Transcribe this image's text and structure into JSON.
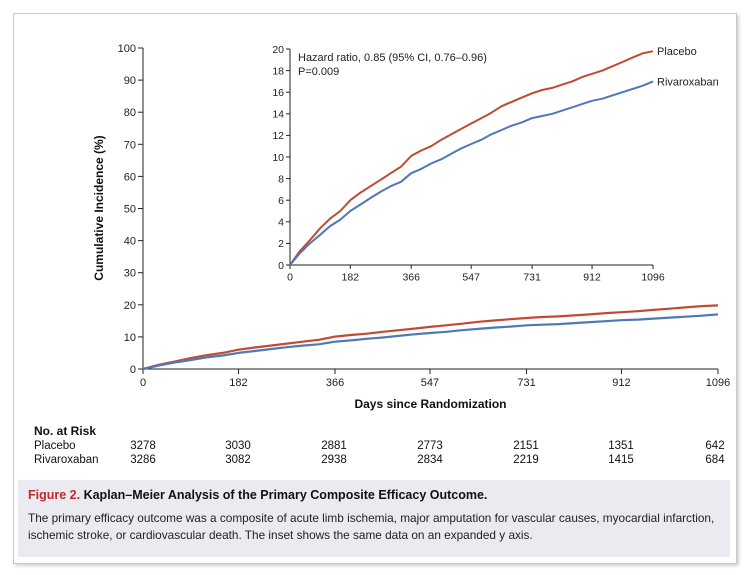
{
  "chart_data": [
    {
      "name": "main",
      "type": "line",
      "xlabel": "Days since Randomization",
      "ylabel": "Cumulative Incidence (%)",
      "xlim": [
        0,
        1096
      ],
      "ylim": [
        0,
        100
      ],
      "xticks": [
        0,
        182,
        366,
        547,
        731,
        912,
        1096
      ],
      "yticks": [
        0,
        10,
        20,
        30,
        40,
        50,
        60,
        70,
        80,
        90,
        100
      ],
      "series": [
        {
          "name": "Placebo",
          "color": "#c24a32",
          "x": [
            0,
            30,
            60,
            91,
            121,
            152,
            182,
            213,
            243,
            274,
            304,
            335,
            366,
            396,
            426,
            457,
            487,
            517,
            547,
            578,
            608,
            639,
            669,
            700,
            731,
            761,
            792,
            822,
            852,
            882,
            912,
            943,
            973,
            1004,
            1034,
            1065,
            1096
          ],
          "y": [
            0,
            1.3,
            2.3,
            3.4,
            4.3,
            5.0,
            6.0,
            6.7,
            7.3,
            7.9,
            8.5,
            9.1,
            10.1,
            10.6,
            11.0,
            11.6,
            12.1,
            12.6,
            13.1,
            13.6,
            14.1,
            14.7,
            15.1,
            15.5,
            15.9,
            16.2,
            16.4,
            16.7,
            17.0,
            17.4,
            17.7,
            18.0,
            18.4,
            18.8,
            19.2,
            19.6,
            19.8
          ]
        },
        {
          "name": "Rivaroxaban",
          "color": "#4f78b5",
          "x": [
            0,
            30,
            60,
            91,
            121,
            152,
            182,
            213,
            243,
            274,
            304,
            335,
            366,
            396,
            426,
            457,
            487,
            517,
            547,
            578,
            608,
            639,
            669,
            700,
            731,
            761,
            792,
            822,
            852,
            882,
            912,
            943,
            973,
            1004,
            1034,
            1065,
            1096
          ],
          "y": [
            0,
            1.1,
            2.0,
            2.8,
            3.6,
            4.2,
            5.0,
            5.6,
            6.2,
            6.8,
            7.3,
            7.7,
            8.5,
            8.9,
            9.4,
            9.8,
            10.3,
            10.8,
            11.2,
            11.6,
            12.1,
            12.5,
            12.9,
            13.2,
            13.6,
            13.8,
            14.0,
            14.3,
            14.6,
            14.9,
            15.2,
            15.4,
            15.7,
            16.0,
            16.3,
            16.6,
            17.0
          ]
        }
      ]
    },
    {
      "name": "inset",
      "type": "line",
      "xlim": [
        0,
        1096
      ],
      "ylim": [
        0,
        20
      ],
      "xticks": [
        0,
        182,
        366,
        547,
        731,
        912,
        1096
      ],
      "yticks": [
        0,
        2,
        4,
        6,
        8,
        10,
        12,
        14,
        16,
        18,
        20
      ],
      "annotation_lines": [
        "Hazard ratio, 0.85 (95% CI, 0.76–0.96)",
        "P=0.009"
      ],
      "series_labels": [
        "Placebo",
        "Rivaroxaban"
      ]
    }
  ],
  "risk_table": {
    "header": "No. at Risk",
    "rows": [
      {
        "label": "Placebo",
        "values": [
          "3278",
          "3030",
          "2881",
          "2773",
          "2151",
          "1351",
          "642"
        ]
      },
      {
        "label": "Rivaroxaban",
        "values": [
          "3286",
          "3082",
          "2938",
          "2834",
          "2219",
          "1415",
          "684"
        ]
      }
    ]
  },
  "caption": {
    "figure_number": "Figure 2.",
    "title": "Kaplan–Meier Analysis of the Primary Composite Efficacy Outcome.",
    "text": "The primary efficacy outcome was a composite of acute limb ischemia, major amputation for vascular causes, myocardial infarction, ischemic stroke, or cardiovascular death. The inset shows the same data on an expanded y axis."
  },
  "colors": {
    "placebo": "#c24a32",
    "rivaroxaban": "#4f78b5",
    "caption_bg": "#e9ebf1",
    "figure_number": "#c0282c"
  }
}
